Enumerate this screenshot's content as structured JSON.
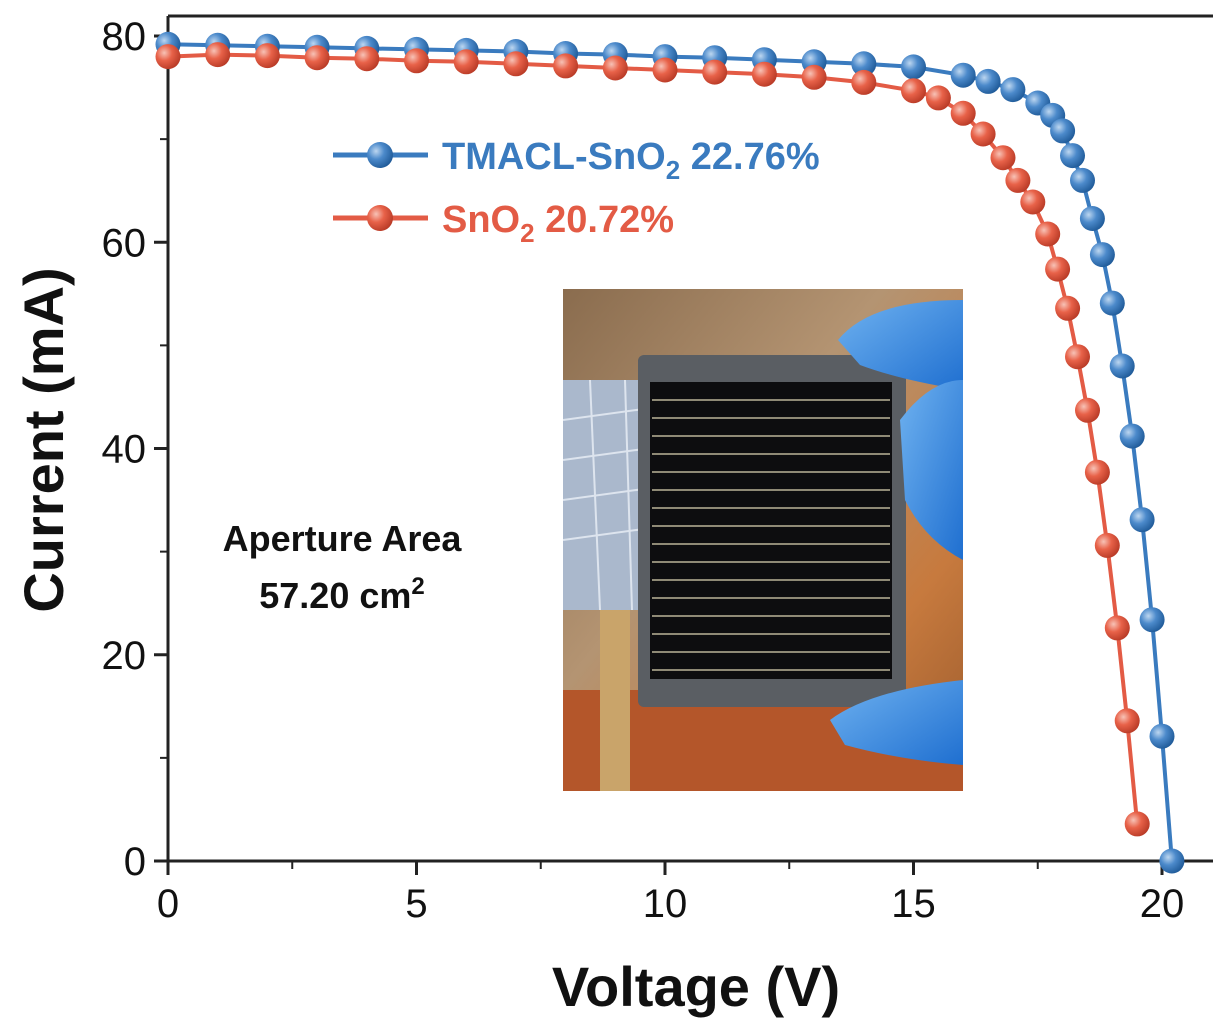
{
  "chart_data": {
    "type": "scatter",
    "xlabel": "Voltage (V)",
    "ylabel": "Current (mA)",
    "xlim": [
      0,
      21
    ],
    "ylim": [
      0,
      82
    ],
    "x_ticks": [
      0,
      5,
      10,
      15,
      20
    ],
    "y_ticks": [
      0,
      20,
      40,
      60,
      80
    ],
    "grid": false,
    "legend_position": "top-left",
    "series": [
      {
        "name": "TMACL-SnO2 22.76%",
        "name_main": "TMACL-SnO",
        "name_sub": "2",
        "name_tail": " 22.76%",
        "color": "#3a7bbf",
        "points": [
          [
            0,
            79.2
          ],
          [
            1,
            79.1
          ],
          [
            2,
            79.0
          ],
          [
            3,
            78.9
          ],
          [
            4,
            78.8
          ],
          [
            5,
            78.7
          ],
          [
            6,
            78.6
          ],
          [
            7,
            78.5
          ],
          [
            8,
            78.3
          ],
          [
            9,
            78.2
          ],
          [
            10,
            78.0
          ],
          [
            11,
            77.9
          ],
          [
            12,
            77.7
          ],
          [
            13,
            77.5
          ],
          [
            14,
            77.3
          ],
          [
            15,
            77.0
          ],
          [
            16,
            76.2
          ],
          [
            16.5,
            75.6
          ],
          [
            17,
            74.8
          ],
          [
            17.5,
            73.5
          ],
          [
            17.8,
            72.3
          ],
          [
            18.0,
            70.8
          ],
          [
            18.2,
            68.4
          ],
          [
            18.4,
            66.0
          ],
          [
            18.6,
            62.3
          ],
          [
            18.8,
            58.8
          ],
          [
            19.0,
            54.1
          ],
          [
            19.2,
            48.0
          ],
          [
            19.4,
            41.2
          ],
          [
            19.6,
            33.1
          ],
          [
            19.8,
            23.4
          ],
          [
            20.0,
            12.1
          ],
          [
            20.2,
            0
          ]
        ]
      },
      {
        "name": "SnO2 20.72%",
        "name_main": "SnO",
        "name_sub": "2",
        "name_tail": " 20.72%",
        "color": "#e35b45",
        "points": [
          [
            0,
            78.0
          ],
          [
            1,
            78.2
          ],
          [
            2,
            78.1
          ],
          [
            3,
            77.9
          ],
          [
            4,
            77.8
          ],
          [
            5,
            77.6
          ],
          [
            6,
            77.5
          ],
          [
            7,
            77.3
          ],
          [
            8,
            77.1
          ],
          [
            9,
            76.9
          ],
          [
            10,
            76.7
          ],
          [
            11,
            76.5
          ],
          [
            12,
            76.3
          ],
          [
            13,
            76.0
          ],
          [
            14,
            75.5
          ],
          [
            15,
            74.7
          ],
          [
            15.5,
            74.0
          ],
          [
            16,
            72.5
          ],
          [
            16.4,
            70.5
          ],
          [
            16.8,
            68.2
          ],
          [
            17.1,
            66.0
          ],
          [
            17.4,
            63.9
          ],
          [
            17.7,
            60.8
          ],
          [
            17.9,
            57.4
          ],
          [
            18.1,
            53.6
          ],
          [
            18.3,
            48.9
          ],
          [
            18.5,
            43.7
          ],
          [
            18.7,
            37.7
          ],
          [
            18.9,
            30.6
          ],
          [
            19.1,
            22.6
          ],
          [
            19.3,
            13.6
          ],
          [
            19.5,
            3.6
          ]
        ]
      }
    ],
    "annotation_line1": "Aperture Area",
    "annotation_line2_main": "57.20 cm",
    "annotation_line2_sup": "2"
  }
}
